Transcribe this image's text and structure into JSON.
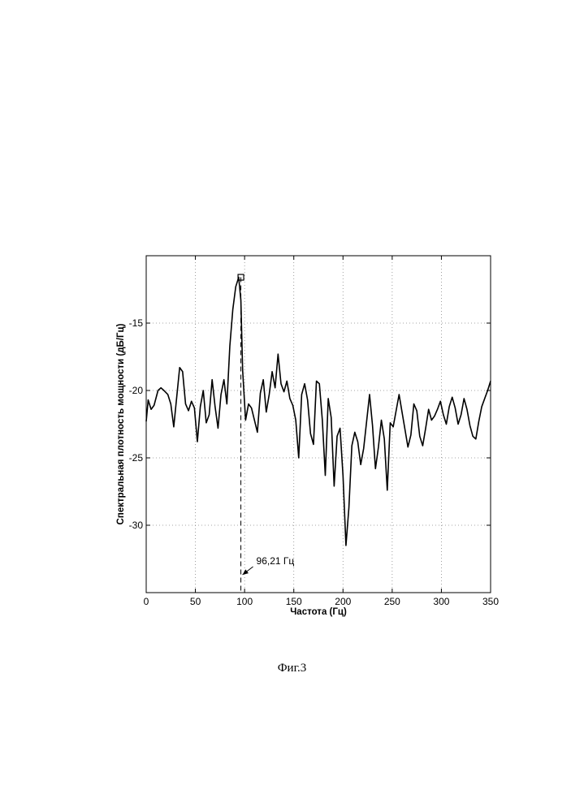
{
  "chart_data": {
    "type": "line",
    "title": "",
    "xlabel": "Частота (Гц)",
    "ylabel": "Спектральная плотность мощности (дБ/Гц)",
    "xlim": [
      0,
      350
    ],
    "ylim": [
      -35,
      -10
    ],
    "x_ticks": [
      0,
      50,
      100,
      150,
      200,
      250,
      300,
      350
    ],
    "y_ticks": [
      -15,
      -20,
      -25,
      -30
    ],
    "grid": true,
    "series": [
      {
        "x": [
          0,
          2,
          5,
          8,
          12,
          15,
          18,
          22,
          25,
          28,
          31,
          34,
          37,
          40,
          43,
          46,
          49,
          52,
          55,
          58,
          61,
          64,
          67,
          70,
          73,
          76,
          79,
          82,
          85,
          88,
          91,
          94,
          96.21,
          98,
          101,
          104,
          107,
          110,
          113,
          116,
          119,
          122,
          125,
          128,
          131,
          134,
          137,
          140,
          143,
          146,
          149,
          152,
          155,
          158,
          161,
          164,
          167,
          170,
          173,
          176,
          179,
          182,
          185,
          188,
          191,
          194,
          197,
          200,
          203,
          206,
          209,
          212,
          215,
          218,
          221,
          224,
          227,
          230,
          233,
          236,
          239,
          242,
          245,
          248,
          251,
          254,
          257,
          260,
          263,
          266,
          269,
          272,
          275,
          278,
          281,
          284,
          287,
          290,
          293,
          296,
          299,
          302,
          305,
          308,
          311,
          314,
          317,
          320,
          323,
          326,
          329,
          332,
          335,
          338,
          341,
          344,
          347,
          350
        ],
        "y": [
          -22.3,
          -20.7,
          -21.4,
          -21.1,
          -20.0,
          -19.8,
          -20.0,
          -20.3,
          -21.0,
          -22.7,
          -20.5,
          -18.3,
          -18.6,
          -21.0,
          -21.5,
          -20.8,
          -21.3,
          -23.8,
          -21.2,
          -20.0,
          -22.4,
          -21.8,
          -19.2,
          -21.2,
          -22.8,
          -20.3,
          -19.2,
          -21.0,
          -16.7,
          -14.0,
          -12.3,
          -11.6,
          -13.3,
          -18.5,
          -22.2,
          -21.0,
          -21.3,
          -22.2,
          -23.1,
          -20.2,
          -19.2,
          -21.6,
          -20.3,
          -18.6,
          -19.8,
          -17.3,
          -19.5,
          -20.1,
          -19.3,
          -20.6,
          -21.1,
          -22.2,
          -25.0,
          -20.3,
          -19.5,
          -20.7,
          -23.2,
          -24.0,
          -19.3,
          -19.5,
          -22.2,
          -26.3,
          -20.6,
          -22.0,
          -27.1,
          -23.4,
          -22.8,
          -26.3,
          -31.5,
          -28.7,
          -24.1,
          -23.1,
          -23.8,
          -25.5,
          -24.3,
          -22.3,
          -20.3,
          -22.6,
          -25.8,
          -24.2,
          -22.2,
          -23.6,
          -27.4,
          -22.4,
          -22.7,
          -21.5,
          -20.3,
          -21.6,
          -22.9,
          -24.2,
          -23.3,
          -21.0,
          -21.5,
          -23.4,
          -24.1,
          -22.8,
          -21.4,
          -22.2,
          -21.9,
          -21.4,
          -20.8,
          -21.8,
          -22.5,
          -21.2,
          -20.5,
          -21.3,
          -22.5,
          -21.8,
          -20.6,
          -21.4,
          -22.6,
          -23.4,
          -23.6,
          -22.3,
          -21.2,
          -20.6,
          -20.0,
          -19.3
        ]
      }
    ],
    "peak_marker": {
      "x": 96.21,
      "y": -11.6
    },
    "annotation": {
      "text": "96,21 Гц",
      "x": 96.21
    }
  },
  "caption": "Фиг.3"
}
